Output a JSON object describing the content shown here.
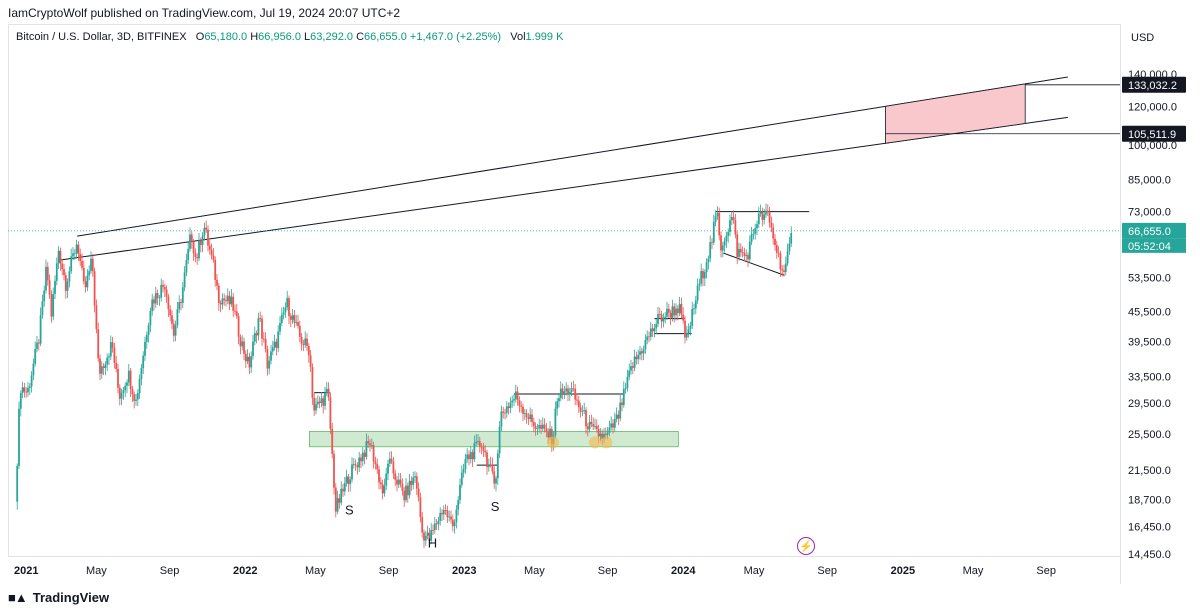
{
  "publisher": "IamCryptoWolf published on TradingView.com, Jul 19, 2024 20:07 UTC+2",
  "legend": {
    "symbol": "Bitcoin / U.S. Dollar, 3D, BITFINEX",
    "o_label": "O",
    "o": "65,180.0",
    "h_label": "H",
    "h": "66,956.0",
    "l_label": "L",
    "l": "63,292.0",
    "c_label": "C",
    "c": "66,655.0",
    "change": "+1,467.0 (+2.25%)",
    "vol_label": "Vol",
    "vol": "1.999 K"
  },
  "currency": "USD",
  "footer": {
    "brand": "TradingView",
    "logo_icon": "tradingview-logo-icon"
  },
  "colors": {
    "up": "#26a69a",
    "down": "#ef5350",
    "box": "#f8c8cc",
    "support": "#c8e6c9"
  },
  "chart_data": {
    "type": "candlestick",
    "symbol": "BTCUSD",
    "interval": "3D",
    "y_scale": "log",
    "ylim": [
      14450,
      140000
    ],
    "y_ticks": [
      {
        "value": 140000,
        "label": "140,000.0"
      },
      {
        "value": 120000,
        "label": "120,000.0"
      },
      {
        "value": 100000,
        "label": "100,000.0"
      },
      {
        "value": 85000,
        "label": "85,000.0"
      },
      {
        "value": 73000,
        "label": "73,000.0"
      },
      {
        "value": 53500,
        "label": "53,500.0"
      },
      {
        "value": 45500,
        "label": "45,500.0"
      },
      {
        "value": 39500,
        "label": "39,500.0"
      },
      {
        "value": 33500,
        "label": "33,500.0"
      },
      {
        "value": 29500,
        "label": "29,500.0"
      },
      {
        "value": 25500,
        "label": "25,500.0"
      },
      {
        "value": 21500,
        "label": "21,500.0"
      },
      {
        "value": 18700,
        "label": "18,700.0"
      },
      {
        "value": 16450,
        "label": "16,450.0"
      },
      {
        "value": 14450,
        "label": "14,450.0"
      }
    ],
    "x_ticks": [
      {
        "date": "2021-01-01",
        "label": "2021",
        "bold": true
      },
      {
        "date": "2021-05-01",
        "label": "May",
        "bold": false
      },
      {
        "date": "2021-09-01",
        "label": "Sep",
        "bold": false
      },
      {
        "date": "2022-01-01",
        "label": "2022",
        "bold": true
      },
      {
        "date": "2022-05-01",
        "label": "May",
        "bold": false
      },
      {
        "date": "2022-09-01",
        "label": "Sep",
        "bold": false
      },
      {
        "date": "2023-01-01",
        "label": "2023",
        "bold": true
      },
      {
        "date": "2023-05-01",
        "label": "May",
        "bold": false
      },
      {
        "date": "2023-09-01",
        "label": "Sep",
        "bold": false
      },
      {
        "date": "2024-01-01",
        "label": "2024",
        "bold": true
      },
      {
        "date": "2024-05-01",
        "label": "May",
        "bold": false
      },
      {
        "date": "2024-09-01",
        "label": "Sep",
        "bold": false
      },
      {
        "date": "2025-01-01",
        "label": "2025",
        "bold": true
      },
      {
        "date": "2025-05-01",
        "label": "May",
        "bold": false
      },
      {
        "date": "2025-09-01",
        "label": "Sep",
        "bold": false
      }
    ],
    "price_path": [
      [
        "2020-12-31",
        18500
      ],
      [
        "2021-01-08",
        32000
      ],
      [
        "2021-01-20",
        31000
      ],
      [
        "2021-02-08",
        40000
      ],
      [
        "2021-02-21",
        56000
      ],
      [
        "2021-03-01",
        45000
      ],
      [
        "2021-03-13",
        61000
      ],
      [
        "2021-03-25",
        52000
      ],
      [
        "2021-04-13",
        63500
      ],
      [
        "2021-04-25",
        50000
      ],
      [
        "2021-05-08",
        58000
      ],
      [
        "2021-05-19",
        34000
      ],
      [
        "2021-06-10",
        39000
      ],
      [
        "2021-06-22",
        30500
      ],
      [
        "2021-07-07",
        34000
      ],
      [
        "2021-07-20",
        29800
      ],
      [
        "2021-08-14",
        47500
      ],
      [
        "2021-09-06",
        52000
      ],
      [
        "2021-09-21",
        41000
      ],
      [
        "2021-10-05",
        50000
      ],
      [
        "2021-10-20",
        66000
      ],
      [
        "2021-10-28",
        58000
      ],
      [
        "2021-11-10",
        68500
      ],
      [
        "2021-11-28",
        55000
      ],
      [
        "2021-12-04",
        49000
      ],
      [
        "2021-12-28",
        47000
      ],
      [
        "2022-01-10",
        40000
      ],
      [
        "2022-01-24",
        35000
      ],
      [
        "2022-02-10",
        44500
      ],
      [
        "2022-02-24",
        35500
      ],
      [
        "2022-03-10",
        39000
      ],
      [
        "2022-03-28",
        47500
      ],
      [
        "2022-04-20",
        40000
      ],
      [
        "2022-05-05",
        38000
      ],
      [
        "2022-05-12",
        28500
      ],
      [
        "2022-06-05",
        31000
      ],
      [
        "2022-06-18",
        17800
      ],
      [
        "2022-07-10",
        21000
      ],
      [
        "2022-08-14",
        24500
      ],
      [
        "2022-09-06",
        19000
      ],
      [
        "2022-09-13",
        22500
      ],
      [
        "2022-10-10",
        19000
      ],
      [
        "2022-10-29",
        21000
      ],
      [
        "2022-11-09",
        16000
      ],
      [
        "2022-11-21",
        15500
      ],
      [
        "2022-12-14",
        18000
      ],
      [
        "2022-12-30",
        16500
      ],
      [
        "2023-01-20",
        22500
      ],
      [
        "2023-02-16",
        24500
      ],
      [
        "2023-03-10",
        20000
      ],
      [
        "2023-03-20",
        28000
      ],
      [
        "2023-04-14",
        30500
      ],
      [
        "2023-05-10",
        27000
      ],
      [
        "2023-06-15",
        25000
      ],
      [
        "2023-06-22",
        30500
      ],
      [
        "2023-07-14",
        31500
      ],
      [
        "2023-08-17",
        26000
      ],
      [
        "2023-09-11",
        25000
      ],
      [
        "2023-10-01",
        27500
      ],
      [
        "2023-10-24",
        35000
      ],
      [
        "2023-12-08",
        44000
      ],
      [
        "2024-01-11",
        46500
      ],
      [
        "2024-01-23",
        39500
      ],
      [
        "2024-02-14",
        52000
      ],
      [
        "2024-03-05",
        63000
      ],
      [
        "2024-03-14",
        73000
      ],
      [
        "2024-03-20",
        61500
      ],
      [
        "2024-04-09",
        71500
      ],
      [
        "2024-04-17",
        60500
      ],
      [
        "2024-05-03",
        59000
      ],
      [
        "2024-05-21",
        71000
      ],
      [
        "2024-06-07",
        71500
      ],
      [
        "2024-06-24",
        59500
      ],
      [
        "2024-07-05",
        54000
      ],
      [
        "2024-07-18",
        66655
      ]
    ],
    "drawings": {
      "upper_trendline": [
        [
          "2021-04-13",
          65000
        ],
        [
          "2025-10-20",
          138000
        ]
      ],
      "lower_trendline": [
        [
          "2021-03-13",
          58000
        ],
        [
          "2025-10-20",
          114000
        ]
      ],
      "projection_box": {
        "x0": "2024-12-20",
        "x1": "2025-08-10"
      },
      "support_zone": {
        "x0": "2022-05-05",
        "x1": "2024-01-10",
        "y0": 24000,
        "y1": 25800
      },
      "head_shoulders_labels": [
        {
          "text": "S",
          "date": "2022-07-10",
          "price": 17400
        },
        {
          "text": "H",
          "date": "2022-11-25",
          "price": 14900
        },
        {
          "text": "S",
          "date": "2023-03-10",
          "price": 17700
        }
      ],
      "support_touches": [
        [
          "2023-06-15",
          24500
        ],
        [
          "2023-08-24",
          24500
        ],
        [
          "2023-09-12",
          24500
        ]
      ],
      "resistance_lines": [
        {
          "x0": "2024-03-12",
          "x1": "2024-08-15",
          "y": 73000
        },
        {
          "x0": "2023-04-11",
          "x1": "2023-10-10",
          "y": 30800
        },
        {
          "x0": "2022-05-13",
          "x1": "2022-06-08",
          "y": 31000
        },
        {
          "x0": "2023-12-01",
          "x1": "2024-02-01",
          "y": 41000
        },
        {
          "x0": "2023-12-01",
          "x1": "2024-01-20",
          "y": 44000
        },
        {
          "x0": "2023-02-08",
          "x1": "2023-03-14",
          "y": 22000
        }
      ],
      "wedge_line": [
        [
          "2024-03-25",
          60000
        ],
        [
          "2024-07-05",
          54000
        ]
      ],
      "last_price_line": 66655
    },
    "price_labels": [
      {
        "value": 133032.2,
        "label": "133,032.2",
        "style": "dark"
      },
      {
        "value": 105511.9,
        "label": "105,511.9",
        "style": "dark"
      },
      {
        "value": 66655,
        "label": "66,655.0",
        "style": "last"
      }
    ],
    "countdown": "05:52:04"
  }
}
